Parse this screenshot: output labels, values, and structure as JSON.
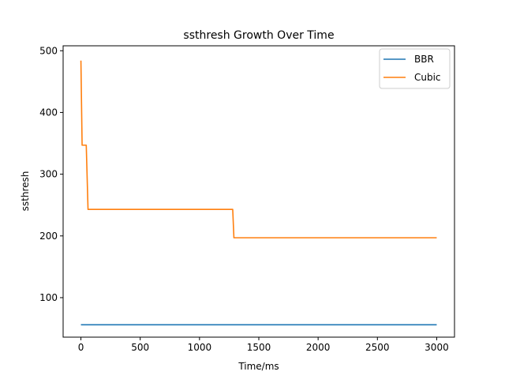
{
  "chart_data": {
    "type": "line",
    "title": "ssthresh Growth Over Time",
    "xlabel": "Time/ms",
    "ylabel": "ssthresh",
    "xlim": [
      -150,
      3150
    ],
    "ylim": [
      36,
      508
    ],
    "xticks": [
      0,
      500,
      1000,
      1500,
      2000,
      2500,
      3000
    ],
    "yticks": [
      100,
      200,
      300,
      400,
      500
    ],
    "grid": false,
    "legend_position": "top-right",
    "series": [
      {
        "name": "BBR",
        "color": "#1f77b4",
        "points": [
          [
            0,
            56
          ],
          [
            3000,
            56
          ]
        ]
      },
      {
        "name": "Cubic",
        "color": "#ff7f0e",
        "points": [
          [
            0,
            484
          ],
          [
            10,
            347
          ],
          [
            45,
            347
          ],
          [
            60,
            243
          ],
          [
            1280,
            243
          ],
          [
            1290,
            197
          ],
          [
            3000,
            197
          ]
        ]
      }
    ]
  }
}
